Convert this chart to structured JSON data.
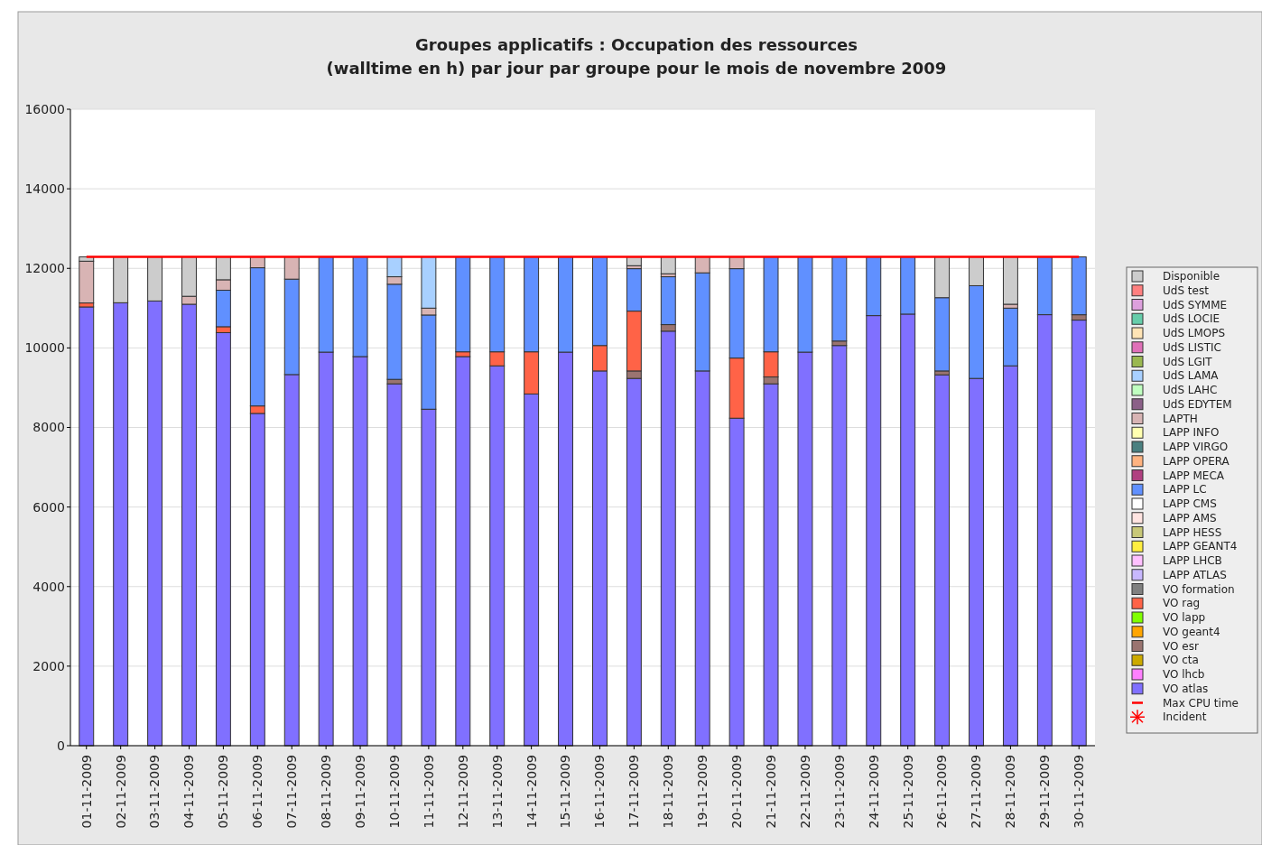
{
  "chart_data": {
    "type": "bar",
    "stacked": true,
    "title": "Groupes applicatifs : Occupation des ressources\n(walltime en h) par jour par groupe pour le mois de novembre 2009",
    "categories": [
      "01-11-2009",
      "02-11-2009",
      "03-11-2009",
      "04-11-2009",
      "05-11-2009",
      "06-11-2009",
      "07-11-2009",
      "08-11-2009",
      "09-11-2009",
      "10-11-2009",
      "11-11-2009",
      "12-11-2009",
      "13-11-2009",
      "14-11-2009",
      "15-11-2009",
      "16-11-2009",
      "17-11-2009",
      "18-11-2009",
      "19-11-2009",
      "20-11-2009",
      "21-11-2009",
      "22-11-2009",
      "23-11-2009",
      "24-11-2009",
      "25-11-2009",
      "26-11-2009",
      "27-11-2009",
      "28-11-2009",
      "29-11-2009",
      "30-11-2009"
    ],
    "ylim": [
      0,
      16000
    ],
    "yticks": [
      0,
      2000,
      4000,
      6000,
      8000,
      10000,
      12000,
      14000,
      16000
    ],
    "grid": "y",
    "legend": "right",
    "series": [
      {
        "name": "VO atlas",
        "color": "#8070ff",
        "values": [
          11030,
          11135,
          11180,
          11098,
          10383,
          8353,
          9330,
          9894,
          9782,
          9097,
          8459,
          9782,
          9549,
          8842,
          9894,
          9421,
          9233,
          10421,
          9421,
          8233,
          9097,
          9894,
          10060,
          10812,
          10850,
          9323,
          9233,
          9549,
          10835,
          10699
        ]
      },
      {
        "name": "VO lhcb",
        "color": "#ff80ff",
        "values": [
          0,
          0,
          0,
          0,
          0,
          0,
          0,
          0,
          0,
          0,
          0,
          0,
          0,
          0,
          0,
          0,
          0,
          0,
          0,
          0,
          0,
          0,
          0,
          0,
          0,
          0,
          0,
          0,
          0,
          0
        ]
      },
      {
        "name": "VO cta",
        "color": "#ccaa00",
        "values": [
          0,
          0,
          0,
          0,
          0,
          0,
          0,
          0,
          0,
          0,
          0,
          0,
          0,
          0,
          0,
          0,
          0,
          0,
          0,
          0,
          0,
          0,
          0,
          0,
          0,
          0,
          0,
          0,
          0,
          0
        ]
      },
      {
        "name": "VO esr",
        "color": "#9a7470",
        "values": [
          0,
          0,
          0,
          0,
          0,
          0,
          0,
          0,
          0,
          113,
          0,
          0,
          0,
          0,
          0,
          0,
          188,
          165,
          0,
          0,
          173,
          0,
          113,
          0,
          0,
          98,
          0,
          0,
          0,
          135
        ]
      },
      {
        "name": "VO geant4",
        "color": "#ffa500",
        "values": [
          0,
          0,
          0,
          0,
          0,
          0,
          0,
          0,
          0,
          0,
          0,
          0,
          0,
          0,
          0,
          0,
          0,
          0,
          0,
          0,
          0,
          0,
          0,
          0,
          0,
          0,
          0,
          0,
          0,
          0
        ]
      },
      {
        "name": "VO lapp",
        "color": "#80ff00",
        "values": [
          0,
          0,
          0,
          0,
          0,
          0,
          0,
          0,
          0,
          0,
          0,
          0,
          0,
          0,
          0,
          0,
          0,
          0,
          0,
          0,
          0,
          0,
          0,
          0,
          0,
          0,
          0,
          0,
          0,
          0
        ]
      },
      {
        "name": "VO rag",
        "color": "#ff6347",
        "values": [
          100,
          0,
          0,
          0,
          150,
          188,
          0,
          0,
          0,
          0,
          0,
          120,
          353,
          1060,
          0,
          639,
          1504,
          0,
          0,
          1512,
          632,
          0,
          0,
          0,
          0,
          0,
          0,
          0,
          0,
          0
        ]
      },
      {
        "name": "VO formation",
        "color": "#808080",
        "values": [
          0,
          0,
          0,
          0,
          0,
          0,
          0,
          0,
          0,
          0,
          0,
          0,
          0,
          0,
          0,
          0,
          0,
          0,
          0,
          0,
          0,
          0,
          0,
          0,
          0,
          0,
          0,
          0,
          0,
          0
        ]
      },
      {
        "name": "LAPP ATLAS",
        "color": "#c8b8ff",
        "values": [
          0,
          0,
          0,
          0,
          0,
          0,
          0,
          0,
          0,
          0,
          0,
          0,
          0,
          0,
          0,
          0,
          0,
          0,
          0,
          0,
          0,
          0,
          0,
          0,
          0,
          0,
          0,
          0,
          0,
          0
        ]
      },
      {
        "name": "LAPP LHCB",
        "color": "#ffc0ff",
        "values": [
          0,
          0,
          0,
          0,
          0,
          0,
          0,
          0,
          0,
          0,
          0,
          0,
          0,
          0,
          0,
          0,
          0,
          0,
          0,
          0,
          0,
          0,
          0,
          0,
          0,
          0,
          0,
          0,
          0,
          0
        ]
      },
      {
        "name": "LAPP GEANT4",
        "color": "#ffee40",
        "values": [
          0,
          0,
          0,
          0,
          0,
          0,
          0,
          0,
          0,
          0,
          0,
          0,
          0,
          0,
          0,
          0,
          0,
          0,
          0,
          0,
          0,
          0,
          0,
          0,
          0,
          0,
          0,
          0,
          0,
          0
        ]
      },
      {
        "name": "LAPP HESS",
        "color": "#c8c878",
        "values": [
          0,
          0,
          0,
          0,
          0,
          0,
          0,
          0,
          0,
          0,
          0,
          0,
          0,
          0,
          0,
          0,
          0,
          0,
          0,
          0,
          0,
          0,
          0,
          0,
          0,
          0,
          0,
          0,
          0,
          0
        ]
      },
      {
        "name": "LAPP AMS",
        "color": "#ffe4e1",
        "values": [
          0,
          0,
          0,
          0,
          0,
          0,
          0,
          0,
          0,
          0,
          0,
          0,
          0,
          0,
          0,
          0,
          0,
          0,
          0,
          0,
          0,
          0,
          0,
          0,
          0,
          0,
          0,
          0,
          0,
          0
        ]
      },
      {
        "name": "LAPP CMS",
        "color": "#ffffff",
        "values": [
          0,
          0,
          0,
          0,
          0,
          0,
          0,
          0,
          0,
          0,
          0,
          0,
          0,
          0,
          0,
          0,
          0,
          0,
          0,
          0,
          0,
          0,
          0,
          0,
          0,
          0,
          0,
          0,
          0,
          0
        ]
      },
      {
        "name": "LAPP LC",
        "color": "#6090ff",
        "values": [
          0,
          0,
          0,
          0,
          917,
          3474,
          2399,
          2394,
          2506,
          2391,
          2368,
          2386,
          2386,
          2386,
          2394,
          2228,
          1067,
          1203,
          2466,
          2247,
          2386,
          2394,
          2115,
          1476,
          1438,
          1842,
          2331,
          1451,
          1453,
          1454
        ]
      },
      {
        "name": "LAPP MECA",
        "color": "#b04080",
        "values": [
          0,
          0,
          0,
          0,
          0,
          0,
          0,
          0,
          0,
          0,
          0,
          0,
          0,
          0,
          0,
          0,
          0,
          0,
          0,
          0,
          0,
          0,
          0,
          0,
          0,
          0,
          0,
          0,
          0,
          0
        ]
      },
      {
        "name": "LAPP OPERA",
        "color": "#ffb380",
        "values": [
          0,
          0,
          0,
          0,
          0,
          0,
          0,
          0,
          0,
          0,
          0,
          0,
          0,
          0,
          0,
          0,
          0,
          0,
          0,
          0,
          0,
          0,
          0,
          0,
          0,
          0,
          0,
          0,
          0,
          0
        ]
      },
      {
        "name": "LAPP VIRGO",
        "color": "#4a8080",
        "values": [
          0,
          0,
          0,
          0,
          0,
          0,
          0,
          0,
          0,
          0,
          0,
          0,
          0,
          0,
          0,
          0,
          0,
          0,
          0,
          0,
          0,
          0,
          0,
          0,
          0,
          0,
          0,
          0,
          0,
          0
        ]
      },
      {
        "name": "LAPP INFO",
        "color": "#ffffb0",
        "values": [
          0,
          0,
          0,
          0,
          0,
          0,
          0,
          0,
          0,
          0,
          0,
          0,
          0,
          0,
          0,
          0,
          0,
          0,
          0,
          0,
          0,
          0,
          0,
          0,
          0,
          0,
          0,
          0,
          0,
          0
        ]
      },
      {
        "name": "LAPTH",
        "color": "#d8b4b4",
        "values": [
          1050,
          0,
          0,
          200,
          263,
          273,
          559,
          0,
          0,
          188,
          173,
          0,
          0,
          0,
          0,
          0,
          75,
          75,
          401,
          296,
          0,
          0,
          0,
          0,
          0,
          0,
          0,
          98,
          0,
          0
        ]
      },
      {
        "name": "UdS EDYTEM",
        "color": "#8b6088",
        "values": [
          0,
          0,
          0,
          0,
          0,
          0,
          0,
          0,
          0,
          0,
          0,
          0,
          0,
          0,
          0,
          0,
          0,
          0,
          0,
          0,
          0,
          0,
          0,
          0,
          0,
          0,
          0,
          0,
          0,
          0
        ]
      },
      {
        "name": "UdS LAHC",
        "color": "#c0ffc0",
        "values": [
          0,
          0,
          0,
          0,
          0,
          0,
          0,
          0,
          0,
          0,
          0,
          0,
          0,
          0,
          0,
          0,
          0,
          0,
          0,
          0,
          0,
          0,
          0,
          0,
          0,
          0,
          0,
          0,
          0,
          0
        ]
      },
      {
        "name": "UdS LAMA",
        "color": "#a8d0ff",
        "values": [
          0,
          0,
          0,
          0,
          0,
          0,
          0,
          0,
          0,
          499,
          1288,
          0,
          0,
          0,
          0,
          0,
          0,
          0,
          0,
          0,
          0,
          0,
          0,
          0,
          0,
          0,
          0,
          0,
          0,
          0
        ]
      },
      {
        "name": "UdS LGIT",
        "color": "#9ab850",
        "values": [
          0,
          0,
          0,
          0,
          0,
          0,
          0,
          0,
          0,
          0,
          0,
          0,
          0,
          0,
          0,
          0,
          0,
          0,
          0,
          0,
          0,
          0,
          0,
          0,
          0,
          0,
          0,
          0,
          0,
          0
        ]
      },
      {
        "name": "UdS LISTIC",
        "color": "#e070b8",
        "values": [
          0,
          0,
          0,
          0,
          0,
          0,
          0,
          0,
          0,
          0,
          0,
          0,
          0,
          0,
          0,
          0,
          0,
          0,
          0,
          0,
          0,
          0,
          0,
          0,
          0,
          0,
          0,
          0,
          0,
          0
        ]
      },
      {
        "name": "UdS LMOPS",
        "color": "#ffe4b5",
        "values": [
          0,
          0,
          0,
          0,
          0,
          0,
          0,
          0,
          0,
          0,
          0,
          0,
          0,
          0,
          0,
          0,
          0,
          0,
          0,
          0,
          0,
          0,
          0,
          0,
          0,
          0,
          0,
          0,
          0,
          0
        ]
      },
      {
        "name": "UdS LOCIE",
        "color": "#66cdaa",
        "values": [
          0,
          0,
          0,
          0,
          0,
          0,
          0,
          0,
          0,
          0,
          0,
          0,
          0,
          0,
          0,
          0,
          0,
          0,
          0,
          0,
          0,
          0,
          0,
          0,
          0,
          0,
          0,
          0,
          0,
          0
        ]
      },
      {
        "name": "UdS SYMME",
        "color": "#dda0dd",
        "values": [
          0,
          0,
          0,
          0,
          0,
          0,
          0,
          0,
          0,
          0,
          0,
          0,
          0,
          0,
          0,
          0,
          0,
          0,
          0,
          0,
          0,
          0,
          0,
          0,
          0,
          0,
          0,
          0,
          0,
          0
        ]
      },
      {
        "name": "UdS test",
        "color": "#ff8080",
        "values": [
          0,
          0,
          0,
          0,
          0,
          0,
          0,
          0,
          0,
          0,
          0,
          0,
          0,
          0,
          0,
          0,
          0,
          0,
          0,
          0,
          0,
          0,
          0,
          0,
          0,
          0,
          0,
          0,
          0,
          0
        ]
      },
      {
        "name": "Disponible",
        "color": "#cccccc",
        "values": [
          108,
          1153,
          1108,
          990,
          575,
          0,
          0,
          0,
          0,
          0,
          0,
          0,
          0,
          0,
          0,
          0,
          221,
          424,
          0,
          0,
          0,
          0,
          0,
          0,
          0,
          1025,
          724,
          1190,
          0,
          0
        ]
      },
      {
        "name": "Max CPU time",
        "type": "line",
        "color": "#ff0000",
        "line_style": "solid",
        "marker": "none",
        "values": [
          12288,
          12288,
          12288,
          12288,
          12288,
          12288,
          12288,
          12288,
          12288,
          12288,
          12288,
          12288,
          12288,
          12288,
          12288,
          12288,
          12288,
          12288,
          12288,
          12288,
          12288,
          12288,
          12288,
          12288,
          12288,
          12288,
          12288,
          12288,
          12288,
          12288
        ]
      },
      {
        "name": "Incident",
        "type": "scatter",
        "color": "#ff0000",
        "marker": "star",
        "values": [
          null,
          null,
          null,
          null,
          null,
          null,
          null,
          null,
          null,
          null,
          null,
          null,
          null,
          null,
          null,
          null,
          null,
          null,
          null,
          null,
          null,
          null,
          null,
          null,
          null,
          null,
          null,
          null,
          null,
          null
        ]
      }
    ]
  }
}
